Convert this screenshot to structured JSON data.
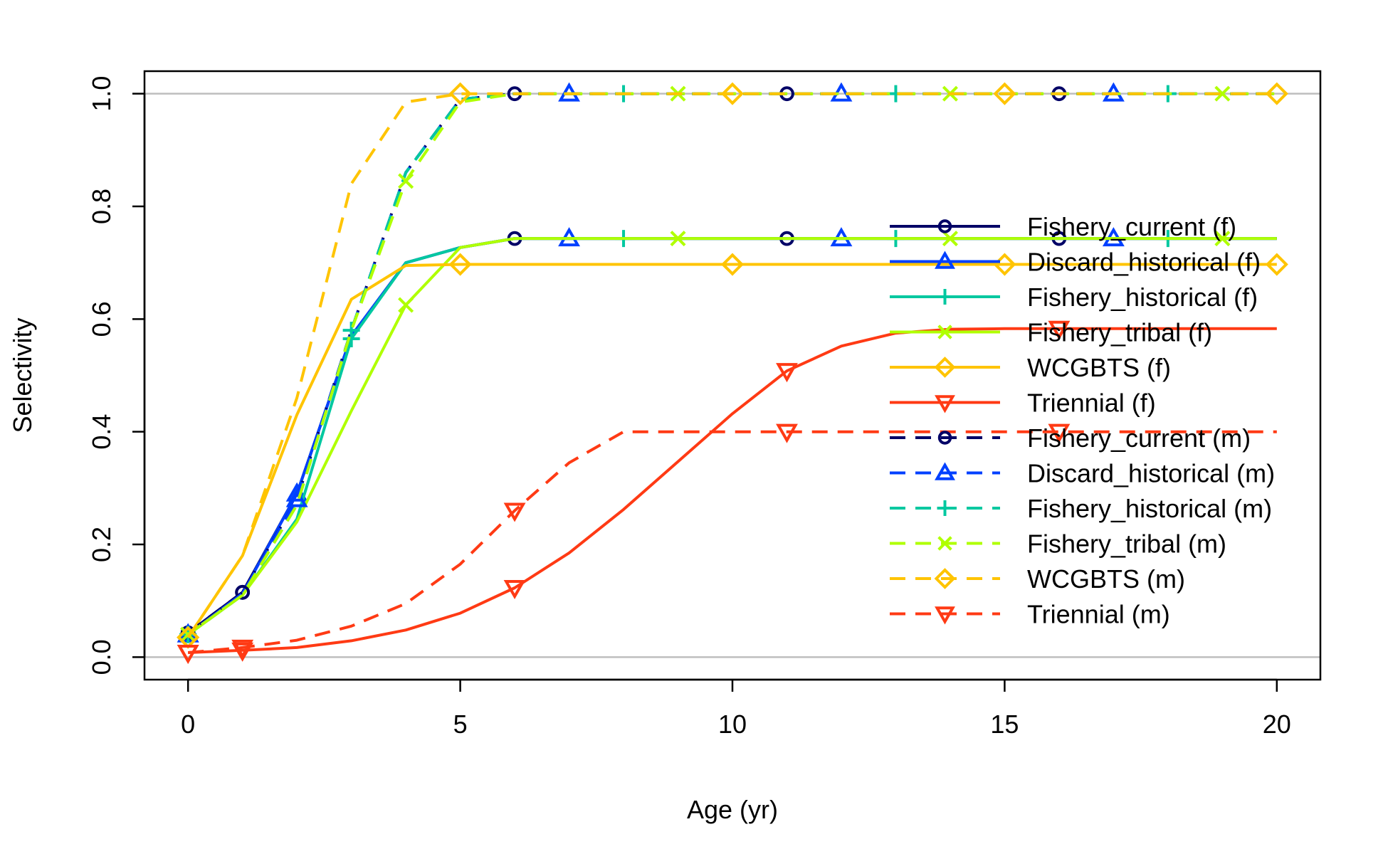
{
  "chart_data": {
    "type": "line",
    "title": "",
    "xlabel": "Age (yr)",
    "ylabel": "Selectivity",
    "xlim": [
      -0.8,
      20.8
    ],
    "ylim": [
      -0.04,
      1.04
    ],
    "xticks": [
      0,
      5,
      10,
      15,
      20
    ],
    "xtick_labels": [
      "0",
      "5",
      "10",
      "15",
      "20"
    ],
    "yticks": [
      0.0,
      0.2,
      0.4,
      0.6,
      0.8,
      1.0
    ],
    "ytick_labels": [
      "0.0",
      "0.2",
      "0.4",
      "0.6",
      "0.8",
      "1.0"
    ],
    "reference_lines": [
      0,
      1
    ],
    "grid": false,
    "legend_position": "right",
    "x": [
      0,
      1,
      2,
      3,
      4,
      5,
      6,
      7,
      8,
      9,
      10,
      11,
      12,
      13,
      14,
      15,
      16,
      17,
      18,
      19,
      20
    ],
    "series": [
      {
        "name": "Fishery_current (f)",
        "color": "#000066",
        "dash": "solid",
        "marker": "circle",
        "marker_offset": 1,
        "values": [
          0.043,
          0.115,
          0.29,
          0.57,
          0.7,
          0.727,
          0.743,
          0.743,
          0.743,
          0.743,
          0.743,
          0.743,
          0.743,
          0.743,
          0.743,
          0.743,
          0.743,
          0.743,
          0.743,
          0.743,
          0.743
        ]
      },
      {
        "name": "Discard_historical (f)",
        "color": "#0040ff",
        "dash": "solid",
        "marker": "triangle",
        "marker_offset": 2,
        "values": [
          0.04,
          0.113,
          0.29,
          0.57,
          0.7,
          0.727,
          0.743,
          0.743,
          0.743,
          0.743,
          0.743,
          0.743,
          0.743,
          0.743,
          0.743,
          0.743,
          0.743,
          0.743,
          0.743,
          0.743,
          0.743
        ]
      },
      {
        "name": "Fishery_historical (f)",
        "color": "#00c8a0",
        "dash": "solid",
        "marker": "plus",
        "marker_offset": 3,
        "values": [
          0.04,
          0.11,
          0.245,
          0.565,
          0.7,
          0.727,
          0.743,
          0.743,
          0.743,
          0.743,
          0.743,
          0.743,
          0.743,
          0.743,
          0.743,
          0.743,
          0.743,
          0.743,
          0.743,
          0.743,
          0.743
        ]
      },
      {
        "name": "Fishery_tribal (f)",
        "color": "#b0ff00",
        "dash": "solid",
        "marker": "cross",
        "marker_offset": 4,
        "values": [
          0.04,
          0.11,
          0.24,
          0.437,
          0.625,
          0.727,
          0.743,
          0.743,
          0.743,
          0.743,
          0.743,
          0.743,
          0.743,
          0.743,
          0.743,
          0.743,
          0.743,
          0.743,
          0.743,
          0.743,
          0.743
        ]
      },
      {
        "name": "WCGBTS (f)",
        "color": "#ffc400",
        "dash": "solid",
        "marker": "diamond",
        "marker_offset": 0,
        "values": [
          0.035,
          0.18,
          0.43,
          0.635,
          0.695,
          0.697,
          0.697,
          0.697,
          0.697,
          0.697,
          0.697,
          0.697,
          0.697,
          0.697,
          0.697,
          0.697,
          0.697,
          0.697,
          0.697,
          0.697,
          0.697
        ]
      },
      {
        "name": "Triennial (f)",
        "color": "#ff3a14",
        "dash": "solid",
        "marker": "triangle-down",
        "marker_offset": 1,
        "values": [
          0.008,
          0.012,
          0.017,
          0.029,
          0.048,
          0.078,
          0.123,
          0.185,
          0.262,
          0.347,
          0.432,
          0.508,
          0.552,
          0.575,
          0.582,
          0.583,
          0.583,
          0.583,
          0.583,
          0.583,
          0.583
        ]
      },
      {
        "name": "Fishery_current (m)",
        "color": "#000066",
        "dash": "dashed",
        "marker": "circle",
        "marker_offset": 1,
        "values": [
          0.043,
          0.115,
          0.28,
          0.58,
          0.86,
          0.99,
          1.0,
          1.0,
          1.0,
          1.0,
          1.0,
          1.0,
          1.0,
          1.0,
          1.0,
          1.0,
          1.0,
          1.0,
          1.0,
          1.0,
          1.0
        ]
      },
      {
        "name": "Discard_historical (m)",
        "color": "#0040ff",
        "dash": "dashed",
        "marker": "triangle",
        "marker_offset": 2,
        "values": [
          0.04,
          0.113,
          0.28,
          0.58,
          0.86,
          0.99,
          1.0,
          1.0,
          1.0,
          1.0,
          1.0,
          1.0,
          1.0,
          1.0,
          1.0,
          1.0,
          1.0,
          1.0,
          1.0,
          1.0,
          1.0
        ]
      },
      {
        "name": "Fishery_historical (m)",
        "color": "#00c8a0",
        "dash": "dashed",
        "marker": "plus",
        "marker_offset": 3,
        "values": [
          0.04,
          0.11,
          0.27,
          0.58,
          0.86,
          0.99,
          1.0,
          1.0,
          1.0,
          1.0,
          1.0,
          1.0,
          1.0,
          1.0,
          1.0,
          1.0,
          1.0,
          1.0,
          1.0,
          1.0,
          1.0
        ]
      },
      {
        "name": "Fishery_tribal (m)",
        "color": "#b0ff00",
        "dash": "dashed",
        "marker": "cross",
        "marker_offset": 4,
        "values": [
          0.04,
          0.11,
          0.27,
          0.58,
          0.845,
          0.985,
          1.0,
          1.0,
          1.0,
          1.0,
          1.0,
          1.0,
          1.0,
          1.0,
          1.0,
          1.0,
          1.0,
          1.0,
          1.0,
          1.0,
          1.0
        ]
      },
      {
        "name": "WCGBTS (m)",
        "color": "#ffc400",
        "dash": "dashed",
        "marker": "diamond",
        "marker_offset": 0,
        "values": [
          0.035,
          0.18,
          0.46,
          0.84,
          0.985,
          1.0,
          1.0,
          1.0,
          1.0,
          1.0,
          1.0,
          1.0,
          1.0,
          1.0,
          1.0,
          1.0,
          1.0,
          1.0,
          1.0,
          1.0,
          1.0
        ]
      },
      {
        "name": "Triennial (m)",
        "color": "#ff3a14",
        "dash": "dashed",
        "marker": "triangle-down",
        "marker_offset": 1,
        "values": [
          0.008,
          0.017,
          0.03,
          0.055,
          0.095,
          0.165,
          0.26,
          0.345,
          0.4,
          0.4,
          0.4,
          0.4,
          0.4,
          0.4,
          0.4,
          0.4,
          0.4,
          0.4,
          0.4,
          0.4,
          0.4
        ]
      }
    ]
  }
}
